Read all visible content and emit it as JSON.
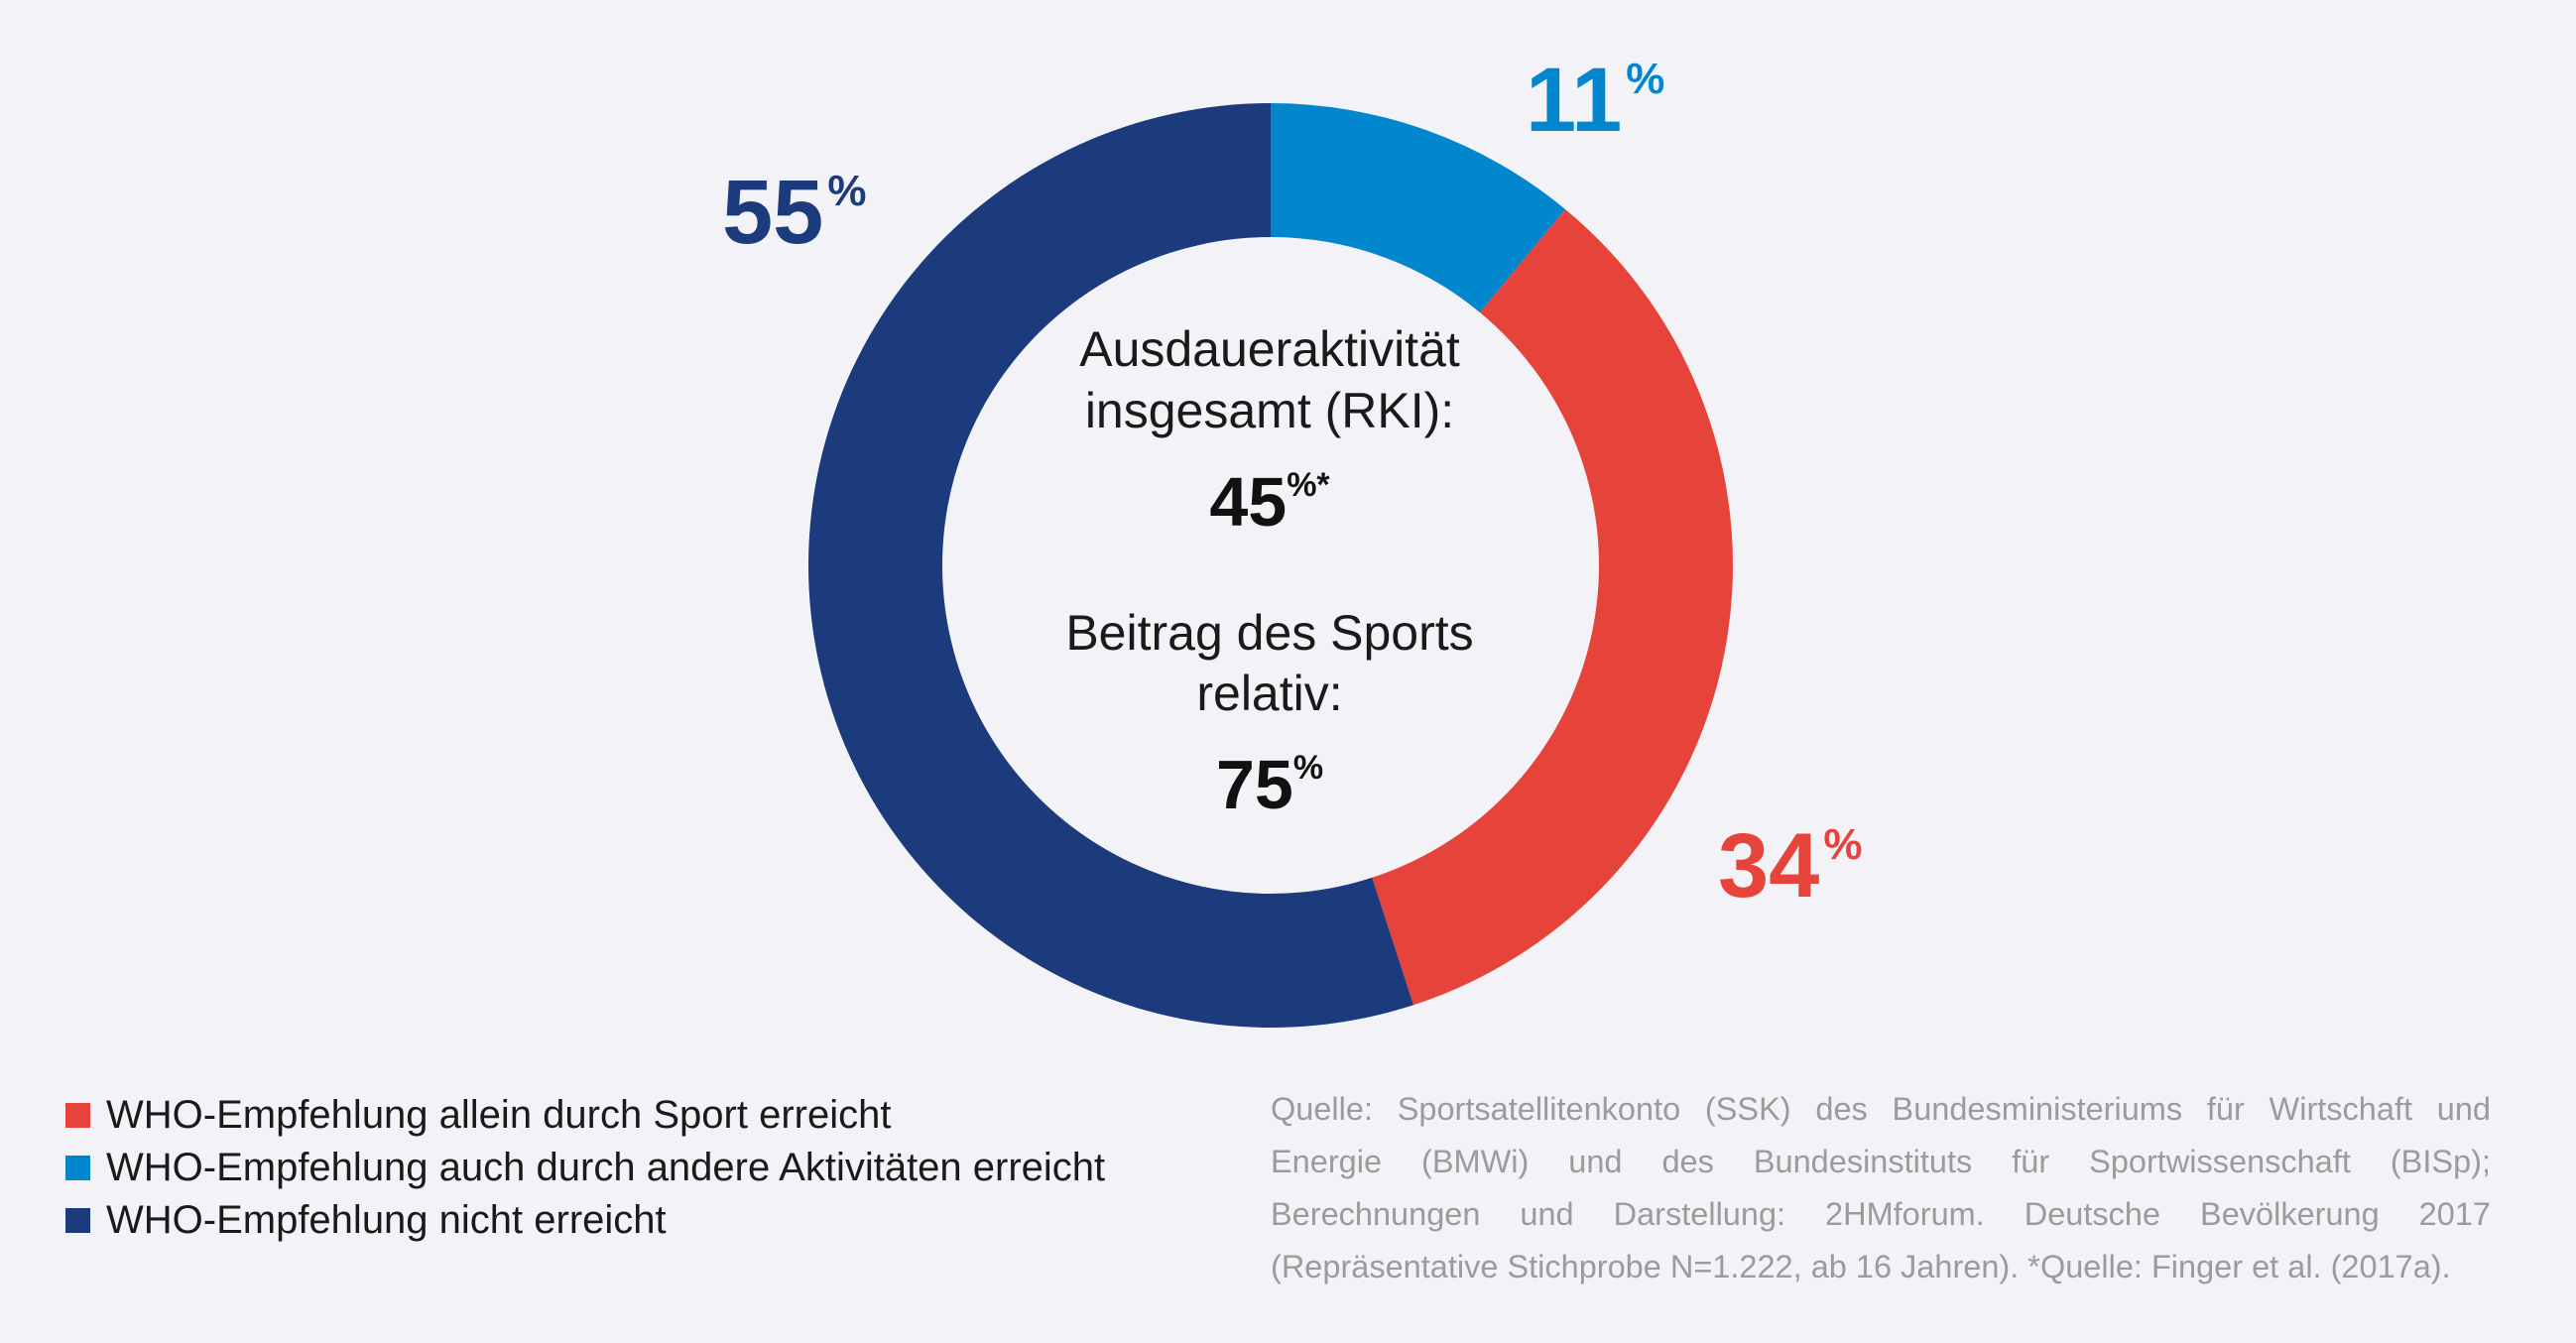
{
  "chart_data": {
    "type": "pie",
    "variant": "donut",
    "slices": [
      {
        "label": "WHO-Empfehlung auch durch andere Aktivitäten erreicht",
        "value": 11,
        "display": "11",
        "color": "#0287cf"
      },
      {
        "label": "WHO-Empfehlung allein durch Sport erreicht",
        "value": 34,
        "display": "34",
        "color": "#e6443a"
      },
      {
        "label": "WHO-Empfehlung nicht erreicht",
        "value": 55,
        "display": "55",
        "color": "#1c3b7d"
      }
    ],
    "percent_sign": "%",
    "legend_position": "bottom-left",
    "center": {
      "line1": "Ausdaueraktivität",
      "line2": "insgesamt (RKI):",
      "value1": "45",
      "value1_sup": "%*",
      "line3": "Beitrag des Sports",
      "line4": "relativ:",
      "value2": "75",
      "value2_sup": "%"
    }
  },
  "legend": [
    {
      "label": "WHO-Empfehlung allein durch Sport erreicht",
      "color": "#e6443a"
    },
    {
      "label": "WHO-Empfehlung auch durch andere Aktivitäten erreicht",
      "color": "#0287cf"
    },
    {
      "label": "WHO-Empfehlung nicht erreicht",
      "color": "#1c3b7d"
    }
  ],
  "source": "Quelle: Sportsatellitenkonto (SSK) des Bundesministeriums für Wirtschaft und Energie (BMWi) und des Bundesinstituts für Sportwissenschaft (BISp); Berechnungen und Darstellung: 2HMforum. Deutsche Bevölkerung 2017 (Repräsentative Stichprobe N=1.222, ab 16 Jahren). *Quelle: Finger et al. (2017a)."
}
